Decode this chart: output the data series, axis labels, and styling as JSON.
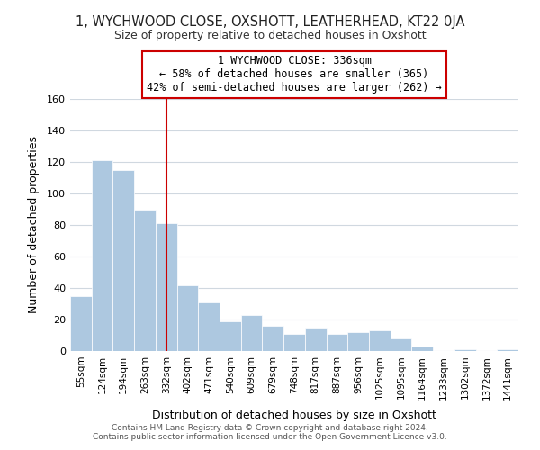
{
  "title_line1": "1, WYCHWOOD CLOSE, OXSHOTT, LEATHERHEAD, KT22 0JA",
  "title_line2": "Size of property relative to detached houses in Oxshott",
  "xlabel": "Distribution of detached houses by size in Oxshott",
  "ylabel": "Number of detached properties",
  "bar_labels": [
    "55sqm",
    "124sqm",
    "194sqm",
    "263sqm",
    "332sqm",
    "402sqm",
    "471sqm",
    "540sqm",
    "609sqm",
    "679sqm",
    "748sqm",
    "817sqm",
    "887sqm",
    "956sqm",
    "1025sqm",
    "1095sqm",
    "1164sqm",
    "1233sqm",
    "1302sqm",
    "1372sqm",
    "1441sqm"
  ],
  "bar_values": [
    35,
    121,
    115,
    90,
    81,
    42,
    31,
    19,
    23,
    16,
    11,
    15,
    11,
    12,
    13,
    8,
    3,
    0,
    1,
    0,
    1
  ],
  "bar_color": "#adc8e0",
  "vline_x": 4,
  "vline_color": "#cc0000",
  "annotation_title": "1 WYCHWOOD CLOSE: 336sqm",
  "annotation_line1": "← 58% of detached houses are smaller (365)",
  "annotation_line2": "42% of semi-detached houses are larger (262) →",
  "annotation_box_color": "#ffffff",
  "annotation_box_edge": "#cc0000",
  "ylim": [
    0,
    160
  ],
  "yticks": [
    0,
    20,
    40,
    60,
    80,
    100,
    120,
    140,
    160
  ],
  "footer_line1": "Contains HM Land Registry data © Crown copyright and database right 2024.",
  "footer_line2": "Contains public sector information licensed under the Open Government Licence v3.0.",
  "background_color": "#ffffff",
  "grid_color": "#d0d8e0"
}
